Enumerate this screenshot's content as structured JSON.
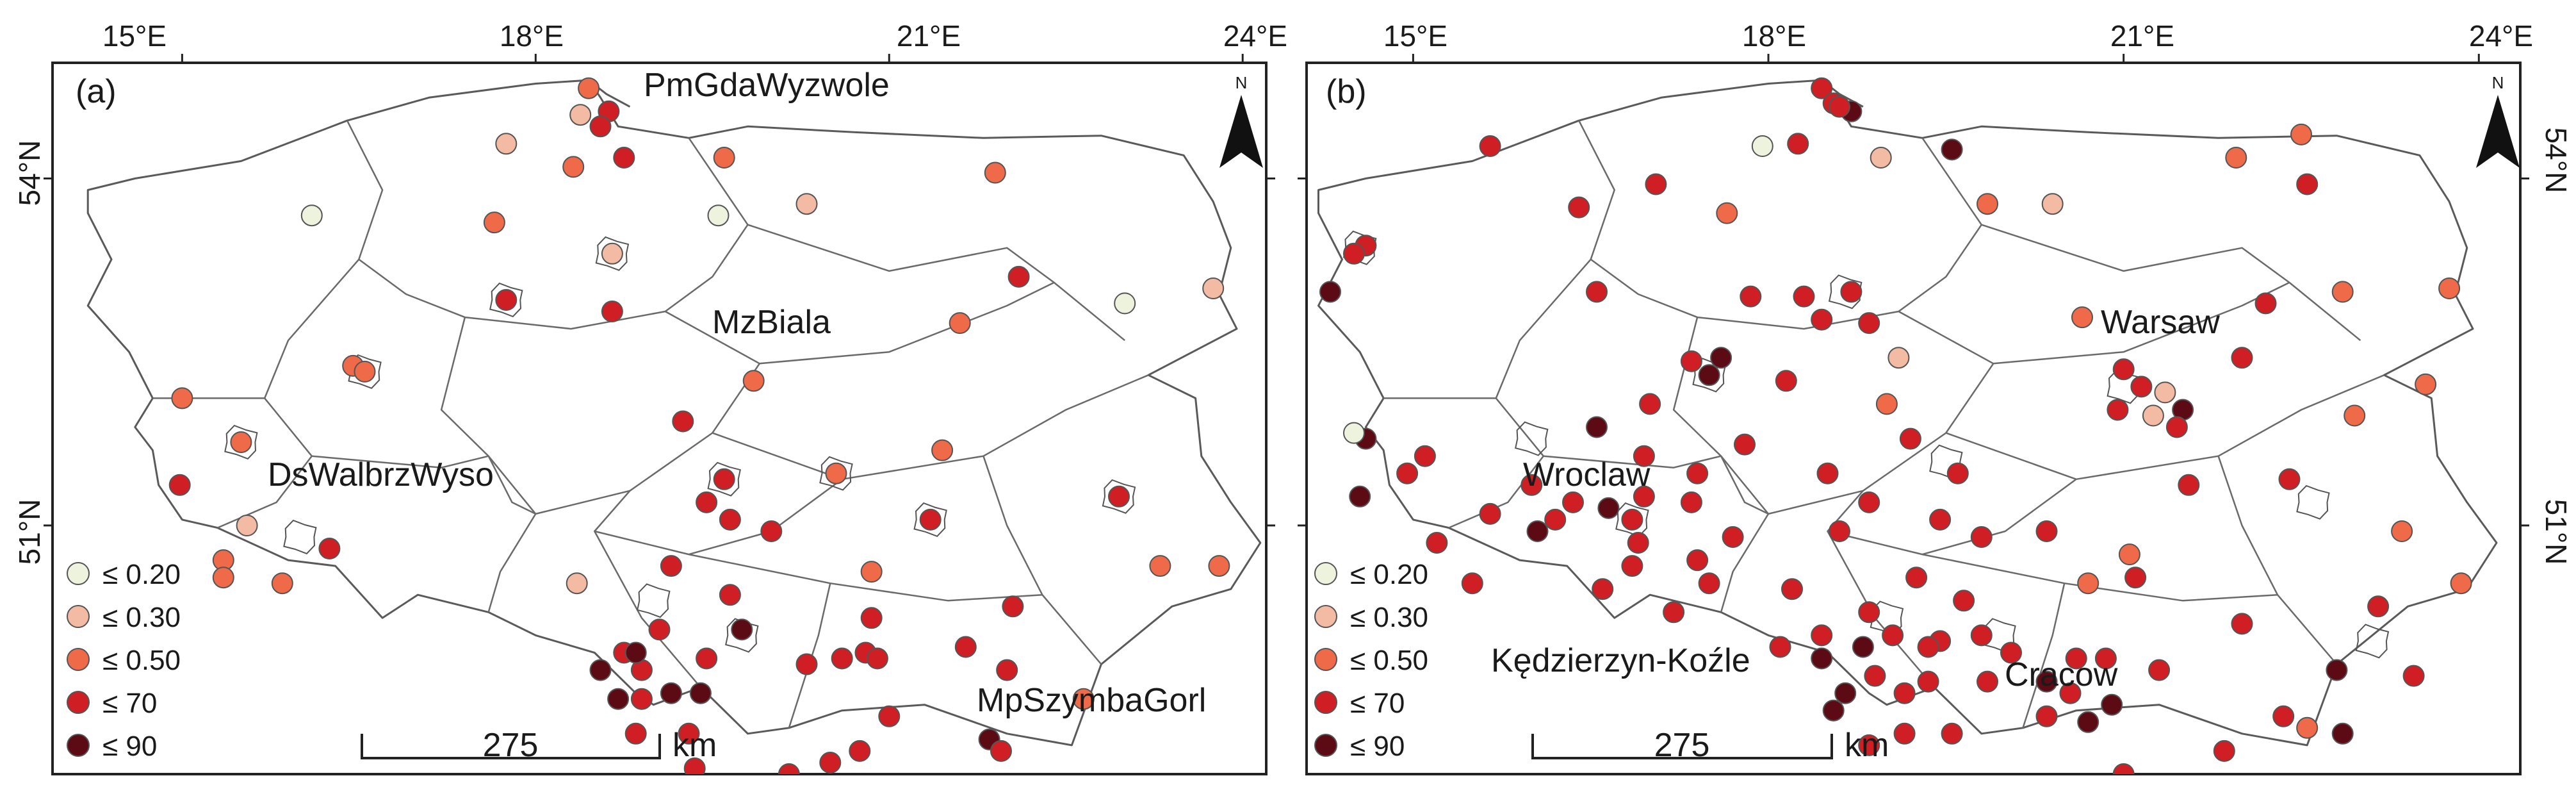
{
  "colors": {
    "c020": "#eef3de",
    "c030": "#f4bba4",
    "c050": "#ef6a48",
    "c70": "#cf1f25",
    "c90": "#5c0a14"
  },
  "north_symbol": "N",
  "north_icon": "north-arrow-icon",
  "maps": [
    {
      "panel_label": "(a)",
      "top_ticks": [
        "15°E",
        "18°E",
        "21°E",
        "24°E"
      ],
      "lat_labels": [
        "54°N",
        "51°N"
      ],
      "places": [
        "PmGdaWyzwole",
        "MzBiala",
        "DsWalbrzWyso",
        "MpSzymbaGorl"
      ],
      "legend": [
        "≤ 0.20",
        "≤ 0.30",
        "≤ 0.50",
        "≤ 70",
        "≤ 90"
      ],
      "scale_value": "275",
      "scale_unit": "km",
      "stations_lonlat_class": [
        [
          18.45,
          54.78,
          2
        ],
        [
          18.62,
          54.58,
          3
        ],
        [
          18.55,
          54.45,
          3
        ],
        [
          18.38,
          54.55,
          1
        ],
        [
          18.75,
          54.18,
          3
        ],
        [
          17.75,
          54.3,
          1
        ],
        [
          19.6,
          54.18,
          2
        ],
        [
          18.32,
          54.1,
          2
        ],
        [
          21.9,
          54.05,
          2
        ],
        [
          20.3,
          53.78,
          1
        ],
        [
          19.55,
          53.68,
          0
        ],
        [
          16.1,
          53.68,
          0
        ],
        [
          17.65,
          53.62,
          2
        ],
        [
          18.65,
          53.35,
          1
        ],
        [
          17.75,
          52.95,
          3
        ],
        [
          18.65,
          52.85,
          3
        ],
        [
          21.6,
          52.75,
          2
        ],
        [
          23.0,
          52.92,
          0
        ],
        [
          23.75,
          53.05,
          1
        ],
        [
          22.1,
          53.15,
          3
        ],
        [
          19.85,
          52.25,
          2
        ],
        [
          16.45,
          52.38,
          2
        ],
        [
          16.55,
          52.33,
          2
        ],
        [
          15.0,
          52.1,
          2
        ],
        [
          15.5,
          51.72,
          2
        ],
        [
          14.98,
          51.35,
          3
        ],
        [
          15.55,
          51.0,
          1
        ],
        [
          16.25,
          50.8,
          3
        ],
        [
          15.35,
          50.7,
          2
        ],
        [
          15.35,
          50.55,
          2
        ],
        [
          15.85,
          50.5,
          2
        ],
        [
          18.35,
          50.5,
          1
        ],
        [
          19.25,
          51.9,
          3
        ],
        [
          19.6,
          51.4,
          3
        ],
        [
          19.45,
          51.2,
          3
        ],
        [
          19.65,
          51.05,
          3
        ],
        [
          19.15,
          50.65,
          3
        ],
        [
          19.65,
          50.4,
          3
        ],
        [
          20.0,
          50.95,
          3
        ],
        [
          20.55,
          51.45,
          2
        ],
        [
          21.45,
          51.65,
          2
        ],
        [
          21.35,
          51.05,
          3
        ],
        [
          20.85,
          50.6,
          2
        ],
        [
          20.85,
          50.2,
          3
        ],
        [
          19.45,
          49.85,
          3
        ],
        [
          19.75,
          50.1,
          4
        ],
        [
          18.75,
          49.9,
          3
        ],
        [
          19.05,
          50.1,
          3
        ],
        [
          18.9,
          49.75,
          3
        ],
        [
          19.15,
          49.55,
          4
        ],
        [
          19.4,
          49.55,
          4
        ],
        [
          18.85,
          49.9,
          4
        ],
        [
          18.55,
          49.75,
          4
        ],
        [
          18.7,
          49.5,
          4
        ],
        [
          18.9,
          49.5,
          3
        ],
        [
          18.85,
          49.2,
          3
        ],
        [
          19.3,
          49.2,
          3
        ],
        [
          20.3,
          49.8,
          3
        ],
        [
          20.6,
          49.85,
          3
        ],
        [
          20.8,
          49.9,
          3
        ],
        [
          20.9,
          49.85,
          3
        ],
        [
          21.65,
          49.95,
          3
        ],
        [
          22.0,
          49.75,
          3
        ],
        [
          22.05,
          50.3,
          3
        ],
        [
          22.95,
          51.25,
          3
        ],
        [
          23.3,
          50.65,
          2
        ],
        [
          23.8,
          50.65,
          2
        ],
        [
          22.65,
          49.5,
          2
        ],
        [
          21.0,
          49.35,
          3
        ],
        [
          21.85,
          49.15,
          4
        ],
        [
          21.95,
          49.05,
          3
        ],
        [
          20.75,
          49.05,
          3
        ],
        [
          20.5,
          48.95,
          3
        ],
        [
          19.35,
          48.9,
          3
        ],
        [
          20.15,
          48.85,
          3
        ]
      ],
      "city_outlines_lonlat": [
        [
          15.5,
          51.72
        ],
        [
          16.55,
          52.33
        ],
        [
          18.65,
          53.35
        ],
        [
          17.75,
          52.95
        ],
        [
          19.6,
          51.4
        ],
        [
          16.0,
          50.9
        ],
        [
          19.0,
          50.35
        ],
        [
          19.75,
          50.05
        ],
        [
          20.55,
          51.45
        ],
        [
          21.35,
          51.05
        ],
        [
          22.95,
          51.25
        ]
      ]
    },
    {
      "panel_label": "(b)",
      "top_ticks": [
        "15°E",
        "18°E",
        "21°E",
        "24°E"
      ],
      "lat_labels": [
        "54°N",
        "51°N"
      ],
      "places": [
        "Warsaw",
        "Wroclaw",
        "Kędzierzyn-Koźle",
        "Cracow"
      ],
      "legend": [
        "≤ 0.20",
        "≤ 0.30",
        "≤ 0.50",
        "≤ 70",
        "≤ 90"
      ],
      "scale_value": "275",
      "scale_unit": "km",
      "stations_lonlat_class": [
        [
          18.45,
          54.78,
          3
        ],
        [
          18.55,
          54.65,
          3
        ],
        [
          18.7,
          54.58,
          4
        ],
        [
          18.6,
          54.62,
          3
        ],
        [
          19.55,
          54.25,
          4
        ],
        [
          18.95,
          54.18,
          1
        ],
        [
          17.95,
          54.28,
          0
        ],
        [
          18.25,
          54.3,
          3
        ],
        [
          22.5,
          54.38,
          2
        ],
        [
          21.95,
          54.18,
          2
        ],
        [
          22.55,
          53.95,
          3
        ],
        [
          20.4,
          53.78,
          1
        ],
        [
          19.85,
          53.78,
          2
        ],
        [
          17.65,
          53.7,
          2
        ],
        [
          17.05,
          53.95,
          3
        ],
        [
          15.65,
          54.28,
          3
        ],
        [
          16.4,
          53.75,
          3
        ],
        [
          14.6,
          53.42,
          3
        ],
        [
          14.5,
          53.35,
          3
        ],
        [
          14.3,
          53.02,
          4
        ],
        [
          16.55,
          53.02,
          3
        ],
        [
          17.85,
          52.98,
          3
        ],
        [
          18.3,
          52.98,
          3
        ],
        [
          18.7,
          53.02,
          3
        ],
        [
          18.45,
          52.78,
          3
        ],
        [
          18.85,
          52.75,
          3
        ],
        [
          20.65,
          52.8,
          2
        ],
        [
          19.1,
          52.45,
          1
        ],
        [
          22.2,
          52.92,
          3
        ],
        [
          22.85,
          53.02,
          2
        ],
        [
          23.75,
          53.05,
          2
        ],
        [
          22.0,
          52.45,
          3
        ],
        [
          21.0,
          52.35,
          3
        ],
        [
          21.15,
          52.2,
          3
        ],
        [
          21.35,
          52.15,
          1
        ],
        [
          21.5,
          52.0,
          4
        ],
        [
          21.25,
          51.95,
          1
        ],
        [
          20.95,
          52.0,
          3
        ],
        [
          21.45,
          51.85,
          3
        ],
        [
          21.55,
          51.35,
          3
        ],
        [
          22.95,
          51.95,
          2
        ],
        [
          23.55,
          52.22,
          2
        ],
        [
          19.0,
          52.05,
          2
        ],
        [
          18.15,
          52.25,
          3
        ],
        [
          17.35,
          52.42,
          3
        ],
        [
          17.6,
          52.45,
          4
        ],
        [
          17.5,
          52.3,
          4
        ],
        [
          17.0,
          52.05,
          3
        ],
        [
          19.6,
          51.45,
          3
        ],
        [
          19.2,
          51.75,
          3
        ],
        [
          19.45,
          51.05,
          3
        ],
        [
          19.8,
          50.9,
          3
        ],
        [
          20.35,
          50.95,
          3
        ],
        [
          21.05,
          50.75,
          2
        ],
        [
          21.1,
          50.55,
          3
        ],
        [
          20.7,
          50.5,
          2
        ],
        [
          22.4,
          51.4,
          3
        ],
        [
          23.35,
          50.95,
          2
        ],
        [
          23.15,
          50.3,
          3
        ],
        [
          23.85,
          50.5,
          2
        ],
        [
          22.0,
          50.15,
          3
        ],
        [
          22.8,
          49.75,
          4
        ],
        [
          22.35,
          49.35,
          3
        ],
        [
          22.85,
          49.2,
          4
        ],
        [
          21.3,
          49.75,
          3
        ],
        [
          20.85,
          49.85,
          3
        ],
        [
          20.6,
          49.85,
          3
        ],
        [
          20.35,
          49.65,
          4
        ],
        [
          20.55,
          49.55,
          3
        ],
        [
          20.9,
          49.45,
          4
        ],
        [
          20.35,
          49.35,
          3
        ],
        [
          19.85,
          49.65,
          3
        ],
        [
          19.35,
          49.65,
          3
        ],
        [
          19.15,
          49.55,
          3
        ],
        [
          18.9,
          49.7,
          3
        ],
        [
          18.65,
          49.55,
          4
        ],
        [
          18.55,
          49.4,
          4
        ],
        [
          18.85,
          49.1,
          3
        ],
        [
          19.15,
          49.2,
          3
        ],
        [
          19.55,
          49.2,
          3
        ],
        [
          20.7,
          49.3,
          4
        ],
        [
          21.85,
          49.05,
          3
        ],
        [
          21.0,
          48.85,
          3
        ],
        [
          22.55,
          49.25,
          2
        ],
        [
          23.45,
          49.7,
          3
        ],
        [
          18.1,
          49.95,
          3
        ],
        [
          18.45,
          50.05,
          3
        ],
        [
          19.45,
          50.0,
          3
        ],
        [
          17.7,
          50.9,
          3
        ],
        [
          17.4,
          50.7,
          3
        ],
        [
          17.5,
          50.5,
          3
        ],
        [
          17.2,
          50.25,
          3
        ],
        [
          16.85,
          50.65,
          3
        ],
        [
          16.6,
          50.45,
          3
        ],
        [
          16.9,
          50.85,
          3
        ],
        [
          16.05,
          50.95,
          4
        ],
        [
          15.5,
          50.5,
          3
        ],
        [
          15.2,
          50.85,
          3
        ],
        [
          16.95,
          51.6,
          3
        ],
        [
          16.2,
          51.05,
          3
        ],
        [
          15.65,
          51.1,
          3
        ],
        [
          15.1,
          51.6,
          3
        ],
        [
          14.95,
          51.45,
          3
        ],
        [
          14.55,
          51.25,
          4
        ],
        [
          14.6,
          51.75,
          4
        ],
        [
          14.5,
          51.8,
          0
        ],
        [
          17.8,
          51.7,
          3
        ],
        [
          18.5,
          51.45,
          3
        ],
        [
          18.85,
          51.2,
          3
        ],
        [
          18.6,
          50.95,
          3
        ],
        [
          19.25,
          50.55,
          3
        ],
        [
          19.65,
          50.35,
          3
        ],
        [
          18.2,
          50.45,
          3
        ],
        [
          18.85,
          50.25,
          3
        ],
        [
          18.8,
          49.95,
          4
        ],
        [
          18.45,
          49.85,
          4
        ],
        [
          19.05,
          50.05,
          3
        ],
        [
          19.35,
          49.95,
          3
        ],
        [
          19.8,
          50.05,
          3
        ],
        [
          20.05,
          49.9,
          3
        ],
        [
          16.0,
          51.35,
          3
        ],
        [
          16.35,
          51.2,
          3
        ],
        [
          16.65,
          51.15,
          4
        ],
        [
          16.85,
          51.05,
          3
        ],
        [
          16.95,
          51.25,
          3
        ],
        [
          17.4,
          51.45,
          3
        ],
        [
          17.35,
          51.2,
          3
        ],
        [
          16.55,
          51.85,
          4
        ]
      ],
      "city_outlines_lonlat": [
        [
          14.55,
          53.4
        ],
        [
          17.5,
          52.3
        ],
        [
          18.65,
          53.02
        ],
        [
          21.0,
          52.2
        ],
        [
          19.5,
          51.55
        ],
        [
          16.85,
          51.05
        ],
        [
          16.0,
          51.75
        ],
        [
          19.0,
          50.2
        ],
        [
          19.95,
          50.05
        ],
        [
          22.6,
          51.2
        ],
        [
          23.1,
          50.0
        ]
      ]
    }
  ]
}
